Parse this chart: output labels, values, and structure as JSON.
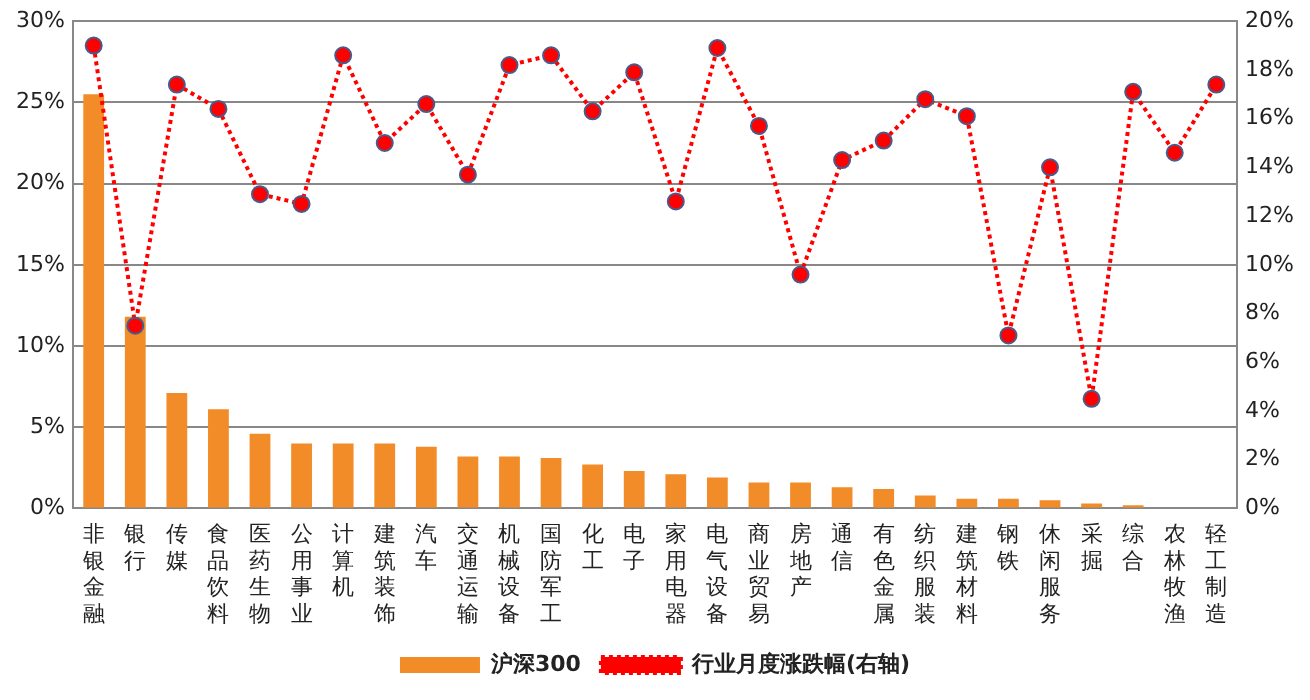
{
  "chart_data": {
    "type": "bar",
    "categories": [
      "非银金融",
      "银行",
      "传媒",
      "食品饮料",
      "医药生物",
      "公用事业",
      "计算机",
      "建筑装饰",
      "汽车",
      "交通运输",
      "机械设备",
      "国防军工",
      "化工",
      "电子",
      "家用电器",
      "电气设备",
      "商业贸易",
      "房地产",
      "通信",
      "有色金属",
      "纺织服装",
      "建筑材料",
      "钢铁",
      "休闲服务",
      "采掘",
      "综合",
      "农林牧渔",
      "轻工制造"
    ],
    "series": [
      {
        "name": "沪深300",
        "color": "#f28c28",
        "values": [
          25.5,
          11.8,
          7.1,
          6.1,
          4.6,
          4.0,
          4.0,
          4.0,
          3.8,
          3.2,
          3.2,
          3.1,
          2.7,
          2.3,
          2.1,
          1.9,
          1.6,
          1.6,
          1.3,
          1.2,
          0.8,
          0.6,
          0.6,
          0.5,
          0.3,
          0.2,
          0,
          0
        ]
      },
      {
        "name": "行业月度涨跌幅(右轴)",
        "type": "line",
        "axis": "y2",
        "color": "#ff0000",
        "values": [
          19.0,
          7.5,
          17.4,
          16.4,
          12.9,
          12.5,
          18.6,
          15.0,
          16.6,
          13.7,
          18.2,
          18.6,
          16.3,
          17.9,
          12.6,
          18.9,
          15.7,
          9.6,
          14.3,
          15.1,
          16.8,
          16.1,
          7.1,
          14.0,
          4.5,
          17.1,
          14.6,
          17.4
        ]
      }
    ],
    "ylim": [
      0,
      30
    ],
    "yticks": [
      {
        "value": 0,
        "label": "0%"
      },
      {
        "value": 5,
        "label": "5%"
      },
      {
        "value": 10,
        "label": "10%"
      },
      {
        "value": 15,
        "label": "15%"
      },
      {
        "value": 20,
        "label": "20%"
      },
      {
        "value": 25,
        "label": "25%"
      },
      {
        "value": 30,
        "label": "30%"
      }
    ],
    "y2lim": [
      0,
      20
    ],
    "y2ticks": [
      {
        "value": 0,
        "label": "0%"
      },
      {
        "value": 2,
        "label": "2%"
      },
      {
        "value": 4,
        "label": "4%"
      },
      {
        "value": 6,
        "label": "6%"
      },
      {
        "value": 8,
        "label": "8%"
      },
      {
        "value": 10,
        "label": "10%"
      },
      {
        "value": 12,
        "label": "12%"
      },
      {
        "value": 14,
        "label": "14%"
      },
      {
        "value": 16,
        "label": "16%"
      },
      {
        "value": 18,
        "label": "18%"
      },
      {
        "value": 20,
        "label": "20%"
      }
    ],
    "grid": "y",
    "legend": "bottom",
    "marker": "circle",
    "line_style": "dotted"
  }
}
